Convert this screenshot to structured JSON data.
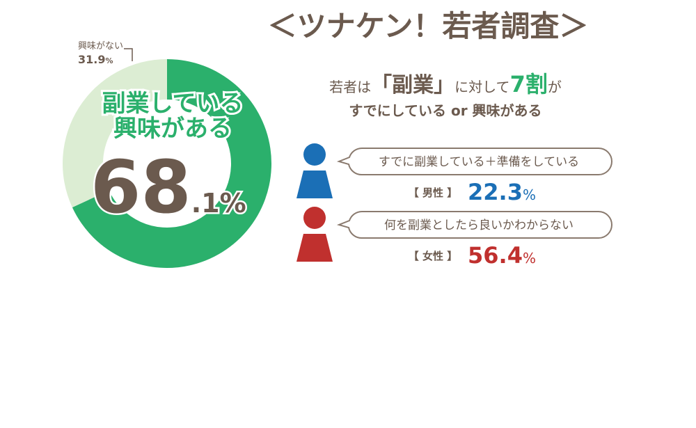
{
  "chart_data": {
    "type": "donut",
    "title": "＜ツナケン！若者調査＞",
    "categories": [
      "副業している\n興味がある",
      "興味がない"
    ],
    "values": [
      68.1,
      31.9
    ],
    "value_labels": [
      "68.1%",
      "31.9%"
    ],
    "colors": [
      "#2bb06c",
      "#dcedd3"
    ]
  },
  "headline": {
    "parts": [
      "若者は",
      "「副業」",
      "に対して",
      "7割",
      "が"
    ],
    "line2": "すでにしている or 興味がある"
  },
  "groups": [
    {
      "bubble": "すでに副業している＋準備をしている",
      "label": "【 男性 】",
      "value": "22.3%",
      "color": "#1b6fb6"
    },
    {
      "bubble": "何を副業としたら良いかわからない",
      "label": "【 女性 】",
      "value": "56.4%",
      "color": "#c0302e"
    }
  ]
}
